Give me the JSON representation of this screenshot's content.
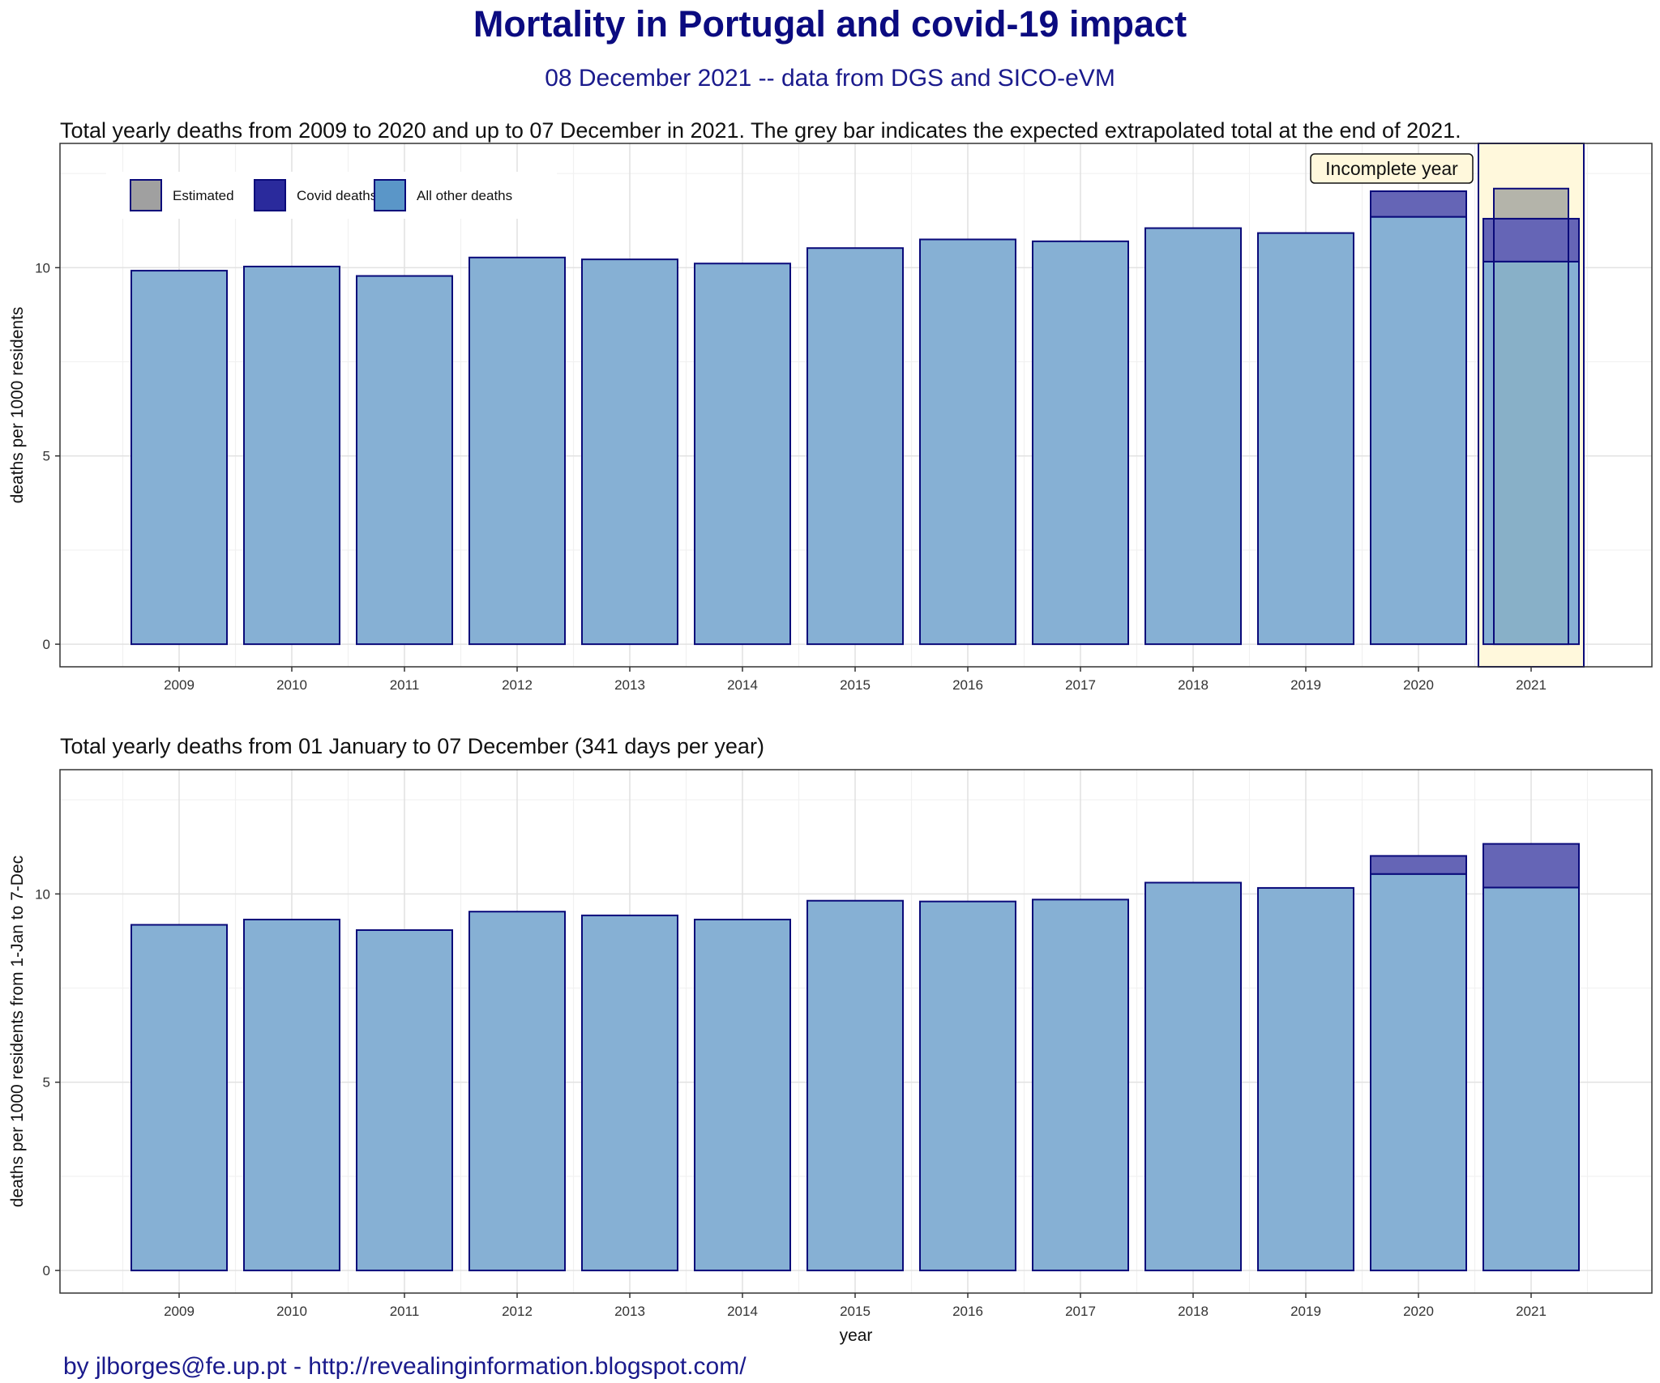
{
  "header": {
    "title": "Mortality in Portugal and covid-19 impact",
    "subtitle": "08 December 2021 -- data from DGS and SICO-eVM"
  },
  "footer": {
    "credit": "by jlborges@fe.up.pt - http://revealinginformation.blogspot.com/"
  },
  "colors": {
    "other": "#86b0d4",
    "covid": "#6565b6",
    "estimated": "#b4b4aa",
    "outline": "#0a0a7a",
    "highlight": "#fff8dc",
    "legend_estimated": "#a0a0a0",
    "legend_covid": "#2a2a9c",
    "legend_other": "#5a96c8"
  },
  "chart_data": [
    {
      "type": "bar",
      "title": "Total yearly deaths from 2009 to 2020 and up to 07 December in 2021. The grey bar indicates the expected extrapolated total at the end of 2021.",
      "xlabel": "",
      "ylabel": "deaths per 1000 residents",
      "ylim": [
        -0.6,
        13.3
      ],
      "yticks": [
        0,
        5,
        10
      ],
      "grid": true,
      "legend_position": "top-left",
      "legend": [
        {
          "key": "estimated",
          "label": "Estimated"
        },
        {
          "key": "covid",
          "label": "Covid deaths"
        },
        {
          "key": "other",
          "label": "All other deaths"
        }
      ],
      "annotation": {
        "text": "Incomplete year",
        "category": "2021"
      },
      "highlight_category": "2021",
      "categories": [
        "2009",
        "2010",
        "2011",
        "2012",
        "2013",
        "2014",
        "2015",
        "2016",
        "2017",
        "2018",
        "2019",
        "2020",
        "2021"
      ],
      "series": [
        {
          "name": "All other deaths",
          "key": "other",
          "values": [
            9.92,
            10.03,
            9.78,
            10.27,
            10.22,
            10.11,
            10.52,
            10.75,
            10.7,
            11.05,
            10.92,
            11.35,
            10.16
          ]
        },
        {
          "name": "Covid deaths",
          "key": "covid",
          "values": [
            0,
            0,
            0,
            0,
            0,
            0,
            0,
            0,
            0,
            0,
            0,
            0.68,
            1.14
          ]
        },
        {
          "name": "Estimated",
          "key": "estimated",
          "values": [
            0,
            0,
            0,
            0,
            0,
            0,
            0,
            0,
            0,
            0,
            0,
            0,
            0.8
          ]
        }
      ]
    },
    {
      "type": "bar",
      "title": "Total yearly deaths from 01 January to 07 December (341 days per year)",
      "xlabel": "year",
      "ylabel": "deaths per 1000 residents from 1-Jan to 7-Dec",
      "ylim": [
        -0.6,
        13.3
      ],
      "yticks": [
        0,
        5,
        10
      ],
      "grid": true,
      "categories": [
        "2009",
        "2010",
        "2011",
        "2012",
        "2013",
        "2014",
        "2015",
        "2016",
        "2017",
        "2018",
        "2019",
        "2020",
        "2021"
      ],
      "series": [
        {
          "name": "All other deaths",
          "key": "other",
          "values": [
            9.18,
            9.32,
            9.04,
            9.53,
            9.43,
            9.32,
            9.82,
            9.8,
            9.85,
            10.3,
            10.16,
            10.53,
            10.17
          ]
        },
        {
          "name": "Covid deaths",
          "key": "covid",
          "values": [
            0,
            0,
            0,
            0,
            0,
            0,
            0,
            0,
            0,
            0,
            0,
            0.48,
            1.16
          ]
        }
      ]
    }
  ]
}
